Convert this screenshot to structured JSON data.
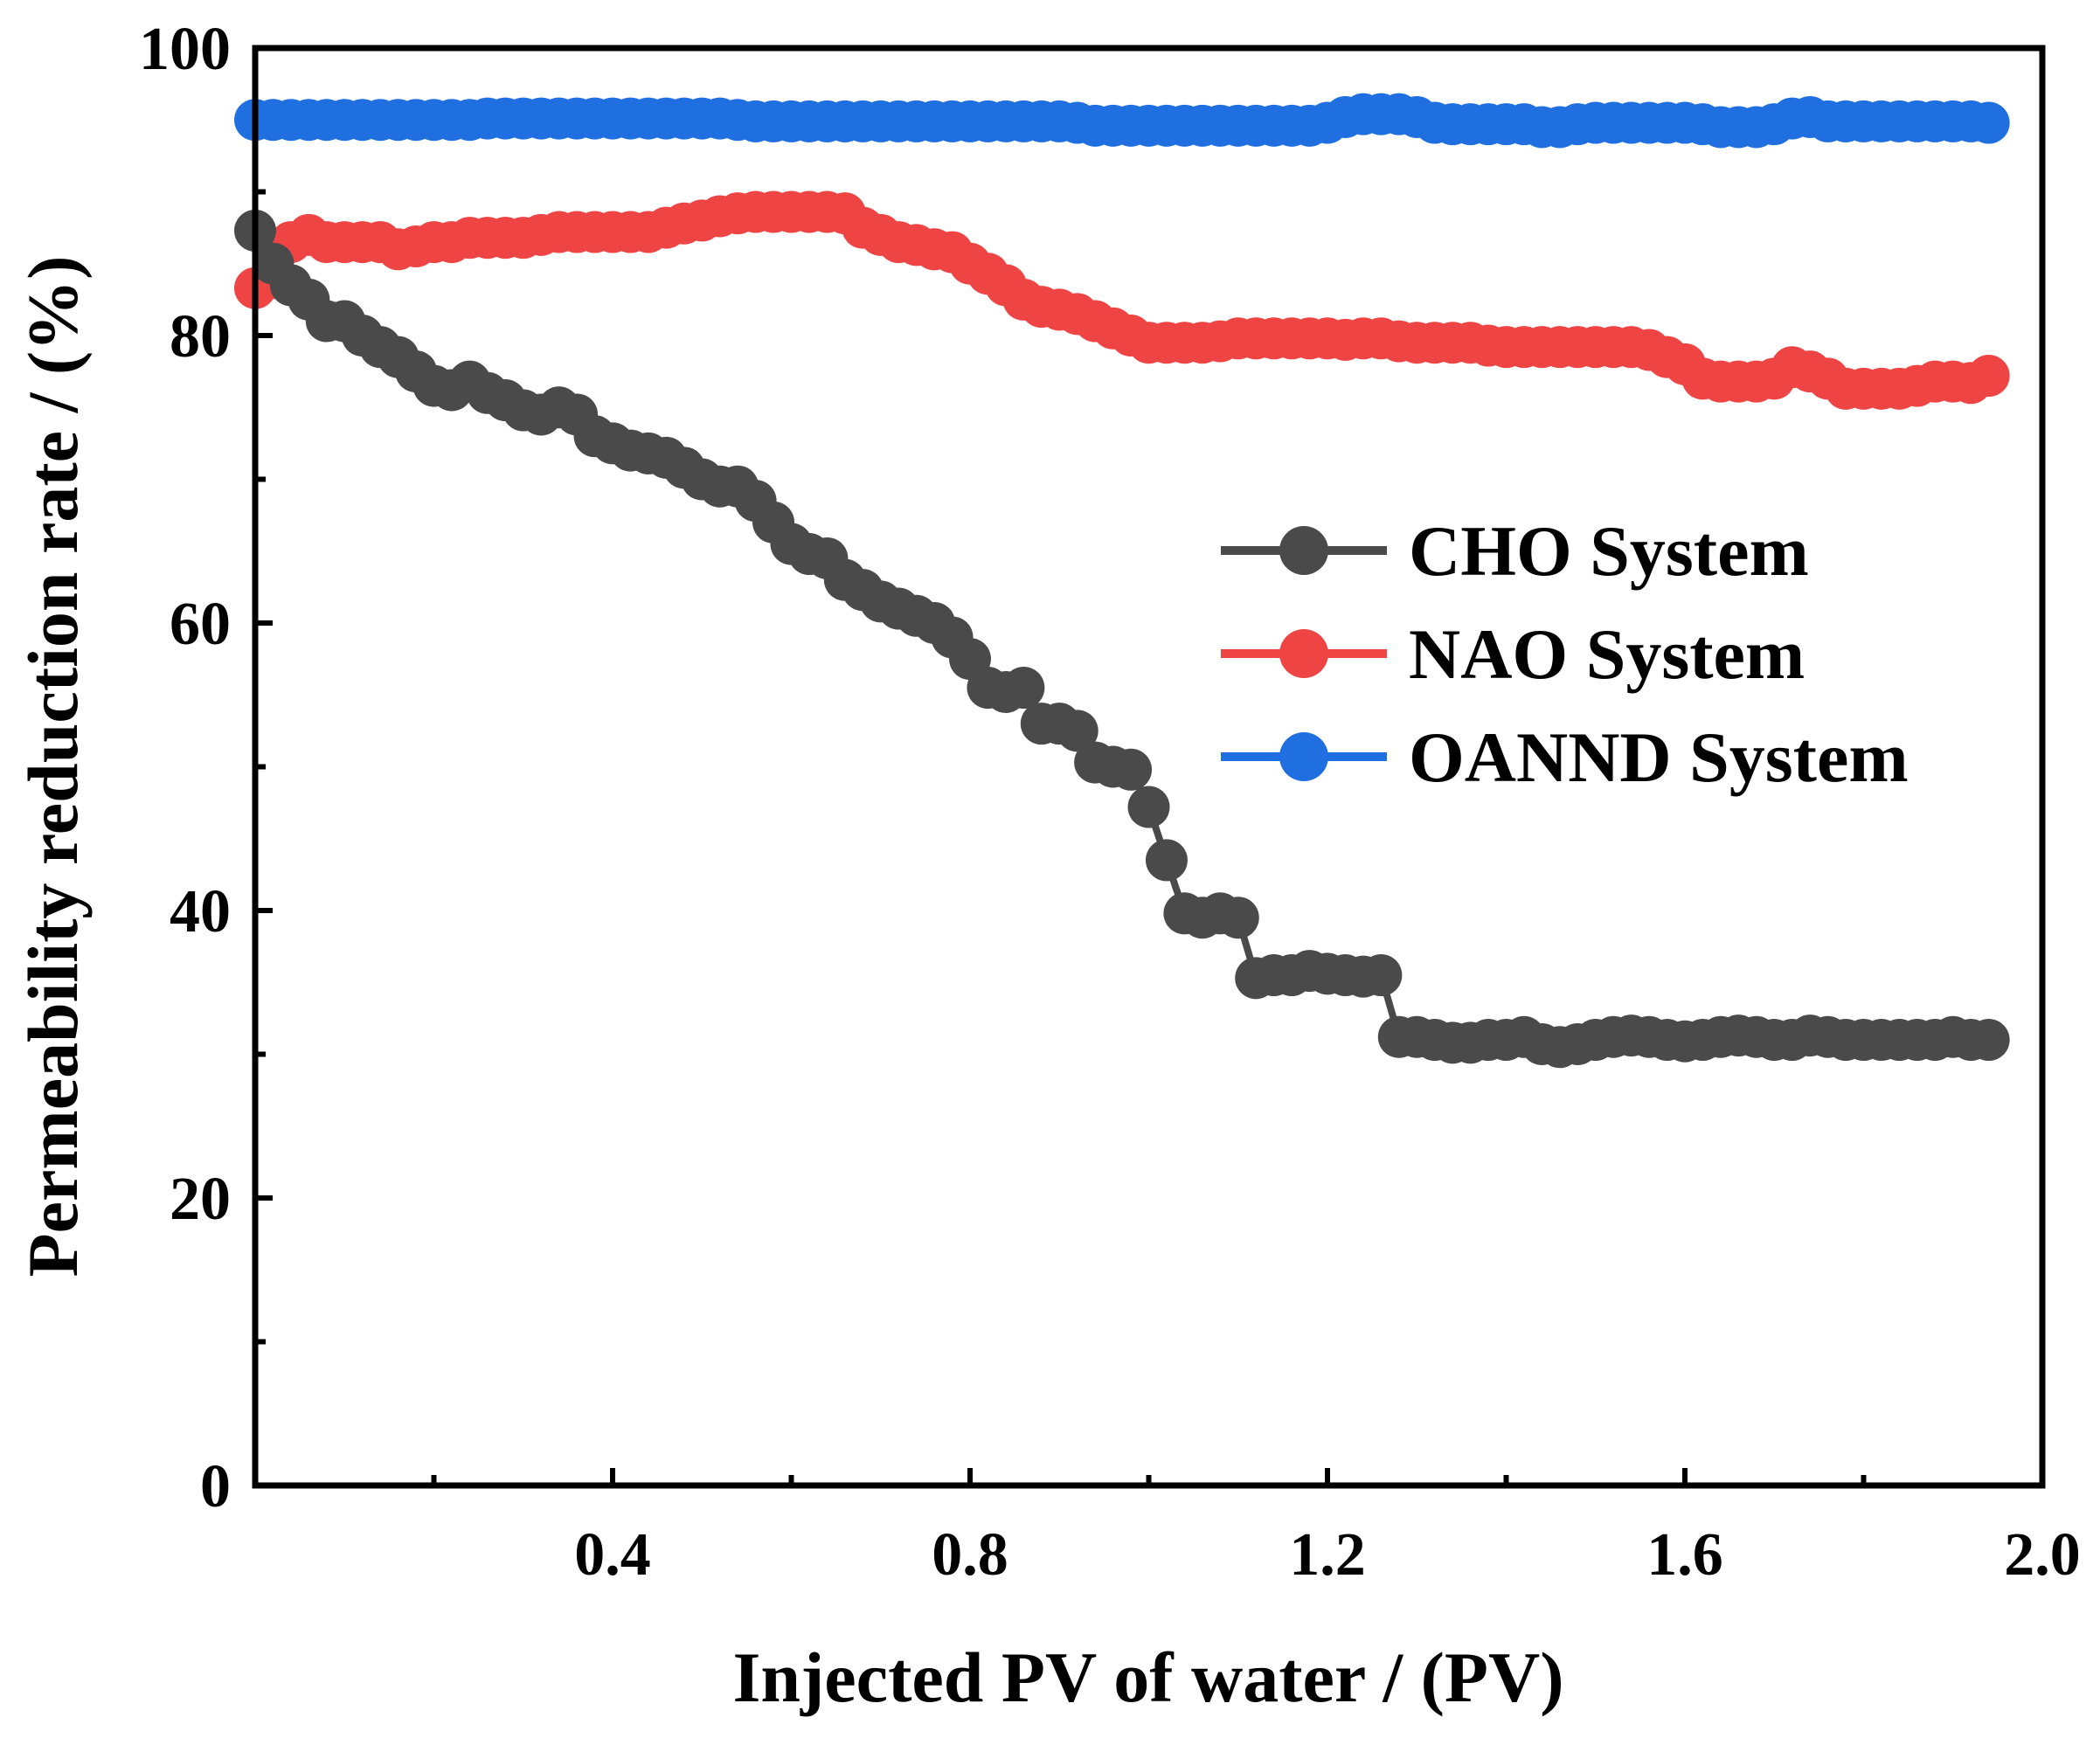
{
  "chart_data": {
    "type": "line",
    "title": "",
    "xlabel": "Injected PV of water / (PV)",
    "ylabel": "Permeability reduction rate / (%)",
    "xlim": [
      0,
      2.0
    ],
    "ylim": [
      0,
      100
    ],
    "x_major_ticks": [
      0.4,
      0.8,
      1.2,
      1.6,
      2.0
    ],
    "x_tick_labels": [
      "0.4",
      "0.8",
      "1.2",
      "1.6",
      "2.0"
    ],
    "x_minor_ticks": [
      0.2,
      0.6,
      1.0,
      1.4,
      1.8
    ],
    "y_major_ticks": [
      0,
      20,
      40,
      60,
      80,
      100
    ],
    "y_tick_labels": [
      "0",
      "20",
      "40",
      "60",
      "80",
      "100"
    ],
    "y_minor_ticks": [
      10,
      30,
      50,
      70,
      90
    ],
    "legend_position": "center-right",
    "series": [
      {
        "name": "CHO System",
        "color": "#4a4a4a",
        "x": [
          0.0,
          0.02,
          0.04,
          0.06,
          0.08,
          0.1,
          0.12,
          0.14,
          0.16,
          0.18,
          0.2,
          0.22,
          0.24,
          0.26,
          0.28,
          0.3,
          0.32,
          0.34,
          0.36,
          0.38,
          0.4,
          0.42,
          0.44,
          0.46,
          0.48,
          0.5,
          0.52,
          0.54,
          0.56,
          0.58,
          0.6,
          0.62,
          0.64,
          0.66,
          0.68,
          0.7,
          0.72,
          0.74,
          0.76,
          0.78,
          0.8,
          0.82,
          0.84,
          0.86,
          0.88,
          0.9,
          0.92,
          0.94,
          0.96,
          0.98,
          1.0,
          1.02,
          1.04,
          1.06,
          1.08,
          1.1,
          1.12,
          1.14,
          1.16,
          1.18,
          1.2,
          1.22,
          1.24,
          1.26,
          1.28,
          1.3,
          1.32,
          1.34,
          1.36,
          1.38,
          1.4,
          1.42,
          1.44,
          1.46,
          1.48,
          1.5,
          1.52,
          1.54,
          1.56,
          1.58,
          1.6,
          1.62,
          1.64,
          1.66,
          1.68,
          1.7,
          1.72,
          1.74,
          1.76,
          1.78,
          1.8,
          1.82,
          1.84,
          1.86,
          1.88,
          1.9,
          1.92,
          1.94
        ],
        "values": [
          87.3,
          85.0,
          83.5,
          82.5,
          81.0,
          81.0,
          80.0,
          79.2,
          78.5,
          77.5,
          76.5,
          76.2,
          76.8,
          76.0,
          75.5,
          74.8,
          74.5,
          75.0,
          74.5,
          73.0,
          72.5,
          72.0,
          71.8,
          71.5,
          70.8,
          70.0,
          69.5,
          69.5,
          68.5,
          67.0,
          65.5,
          64.8,
          64.5,
          63.0,
          62.3,
          61.5,
          61.0,
          60.5,
          60.0,
          59.0,
          57.5,
          55.5,
          55.2,
          55.5,
          53.0,
          53.0,
          52.5,
          50.3,
          50.0,
          49.8,
          47.2,
          43.5,
          39.8,
          39.5,
          39.8,
          39.5,
          35.3,
          35.5,
          35.5,
          35.8,
          35.6,
          35.5,
          35.4,
          35.5,
          31.2,
          31.2,
          31.0,
          30.8,
          30.8,
          31.0,
          31.0,
          31.2,
          30.7,
          30.5,
          30.7,
          31.0,
          31.2,
          31.3,
          31.2,
          31.0,
          30.9,
          31.0,
          31.2,
          31.3,
          31.2,
          31.0,
          31.0,
          31.3,
          31.2,
          31.0,
          31.0,
          31.0,
          31.0,
          31.0,
          31.0,
          31.2,
          31.0,
          31.0
        ]
      },
      {
        "name": "NAO System",
        "color": "#ee4444",
        "x": [
          0.0,
          0.02,
          0.04,
          0.06,
          0.08,
          0.1,
          0.12,
          0.14,
          0.16,
          0.18,
          0.2,
          0.22,
          0.24,
          0.26,
          0.28,
          0.3,
          0.32,
          0.34,
          0.36,
          0.38,
          0.4,
          0.42,
          0.44,
          0.46,
          0.48,
          0.5,
          0.52,
          0.54,
          0.56,
          0.58,
          0.6,
          0.62,
          0.64,
          0.66,
          0.68,
          0.7,
          0.72,
          0.74,
          0.76,
          0.78,
          0.8,
          0.82,
          0.84,
          0.86,
          0.88,
          0.9,
          0.92,
          0.94,
          0.96,
          0.98,
          1.0,
          1.02,
          1.04,
          1.06,
          1.08,
          1.1,
          1.12,
          1.14,
          1.16,
          1.18,
          1.2,
          1.22,
          1.24,
          1.26,
          1.28,
          1.3,
          1.32,
          1.34,
          1.36,
          1.38,
          1.4,
          1.42,
          1.44,
          1.46,
          1.48,
          1.5,
          1.52,
          1.54,
          1.56,
          1.58,
          1.6,
          1.62,
          1.64,
          1.66,
          1.68,
          1.7,
          1.72,
          1.74,
          1.76,
          1.78,
          1.8,
          1.82,
          1.84,
          1.86,
          1.88,
          1.9,
          1.92,
          1.94
        ],
        "values": [
          83.3,
          84.0,
          86.5,
          87.0,
          86.5,
          86.5,
          86.5,
          86.5,
          86.0,
          86.2,
          86.5,
          86.5,
          86.8,
          86.8,
          86.8,
          86.8,
          87.0,
          87.2,
          87.2,
          87.2,
          87.2,
          87.2,
          87.2,
          87.5,
          87.8,
          88.0,
          88.3,
          88.5,
          88.6,
          88.6,
          88.6,
          88.6,
          88.6,
          88.5,
          87.5,
          87.0,
          86.5,
          86.3,
          86.0,
          85.8,
          85.0,
          84.3,
          83.5,
          82.5,
          82.0,
          81.8,
          81.5,
          81.0,
          80.5,
          80.0,
          79.5,
          79.5,
          79.5,
          79.5,
          79.6,
          79.8,
          79.8,
          79.8,
          79.8,
          79.8,
          79.8,
          79.7,
          79.8,
          79.8,
          79.6,
          79.5,
          79.5,
          79.5,
          79.5,
          79.3,
          79.2,
          79.2,
          79.2,
          79.2,
          79.2,
          79.2,
          79.2,
          79.2,
          79.0,
          78.5,
          78.0,
          77.0,
          76.8,
          76.8,
          76.8,
          77.0,
          77.8,
          77.5,
          77.0,
          76.3,
          76.3,
          76.3,
          76.3,
          76.5,
          76.8,
          76.8,
          76.7,
          77.2
        ]
      },
      {
        "name": "OANND System",
        "color": "#1f6fe0",
        "x": [
          0.0,
          0.02,
          0.04,
          0.06,
          0.08,
          0.1,
          0.12,
          0.14,
          0.16,
          0.18,
          0.2,
          0.22,
          0.24,
          0.26,
          0.28,
          0.3,
          0.32,
          0.34,
          0.36,
          0.38,
          0.4,
          0.42,
          0.44,
          0.46,
          0.48,
          0.5,
          0.52,
          0.54,
          0.56,
          0.58,
          0.6,
          0.62,
          0.64,
          0.66,
          0.68,
          0.7,
          0.72,
          0.74,
          0.76,
          0.78,
          0.8,
          0.82,
          0.84,
          0.86,
          0.88,
          0.9,
          0.92,
          0.94,
          0.96,
          0.98,
          1.0,
          1.02,
          1.04,
          1.06,
          1.08,
          1.1,
          1.12,
          1.14,
          1.16,
          1.18,
          1.2,
          1.22,
          1.24,
          1.26,
          1.28,
          1.3,
          1.32,
          1.34,
          1.36,
          1.38,
          1.4,
          1.42,
          1.44,
          1.46,
          1.48,
          1.5,
          1.52,
          1.54,
          1.56,
          1.58,
          1.6,
          1.62,
          1.64,
          1.66,
          1.68,
          1.7,
          1.72,
          1.74,
          1.76,
          1.78,
          1.8,
          1.82,
          1.84,
          1.86,
          1.88,
          1.9,
          1.92,
          1.94
        ],
        "values": [
          95.0,
          95.0,
          95.0,
          95.0,
          95.0,
          95.0,
          95.0,
          95.0,
          95.0,
          95.0,
          95.0,
          95.0,
          95.0,
          95.1,
          95.1,
          95.1,
          95.1,
          95.1,
          95.1,
          95.1,
          95.1,
          95.1,
          95.1,
          95.1,
          95.1,
          95.1,
          95.1,
          95.0,
          94.9,
          94.9,
          94.9,
          94.9,
          94.9,
          94.9,
          94.9,
          94.9,
          94.9,
          94.9,
          94.9,
          94.9,
          94.9,
          94.9,
          94.9,
          94.9,
          94.9,
          94.9,
          94.8,
          94.6,
          94.6,
          94.6,
          94.6,
          94.6,
          94.6,
          94.6,
          94.6,
          94.6,
          94.6,
          94.6,
          94.6,
          94.6,
          94.8,
          95.2,
          95.4,
          95.4,
          95.4,
          95.2,
          94.8,
          94.7,
          94.7,
          94.7,
          94.7,
          94.7,
          94.5,
          94.5,
          94.7,
          94.8,
          94.8,
          94.8,
          94.8,
          94.8,
          94.8,
          94.7,
          94.5,
          94.5,
          94.5,
          94.7,
          95.1,
          95.2,
          94.9,
          94.9,
          94.9,
          94.9,
          94.9,
          94.9,
          94.9,
          94.9,
          94.9,
          94.8
        ]
      }
    ]
  }
}
